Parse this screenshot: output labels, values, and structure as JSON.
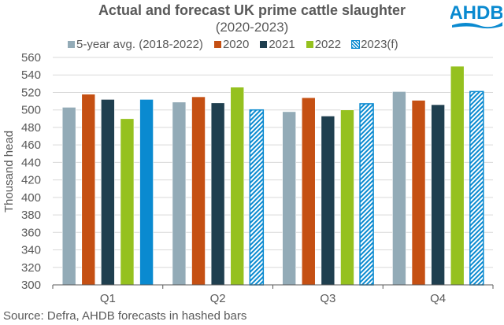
{
  "header": {
    "title": "Actual and forecast UK prime cattle slaughter",
    "subtitle": "(2020-2023)",
    "logo_text": "AHDB",
    "logo_color": "#0a8ad0"
  },
  "footer": {
    "source": "Source: Defra, AHDB forecasts in hashed bars"
  },
  "chart_data": {
    "type": "bar",
    "title": "Actual and forecast UK prime cattle slaughter (2020-2023)",
    "xlabel": "",
    "ylabel": "Thousand head",
    "ylim": [
      300,
      560
    ],
    "yticks": [
      300,
      320,
      340,
      360,
      380,
      400,
      420,
      440,
      460,
      480,
      500,
      520,
      540,
      560
    ],
    "grid": true,
    "legend_position": "top",
    "categories": [
      "Q1",
      "Q2",
      "Q3",
      "Q4"
    ],
    "series": [
      {
        "name": "5-year avg. (2018-2022)",
        "color": "#93abb7",
        "pattern": "solid",
        "values": [
          503,
          509,
          498,
          521
        ]
      },
      {
        "name": "2020",
        "color": "#c55013",
        "pattern": "solid",
        "values": [
          518,
          515,
          514,
          511
        ]
      },
      {
        "name": "2021",
        "color": "#1f3f4f",
        "pattern": "solid",
        "values": [
          512,
          508,
          493,
          506
        ]
      },
      {
        "name": "2022",
        "color": "#95c11f",
        "pattern": "solid",
        "values": [
          490,
          526,
          500,
          550
        ]
      },
      {
        "name": "2023(f)",
        "color": "#0a8ad0",
        "pattern": "hatched",
        "hatched_categories": [
          "Q2",
          "Q3",
          "Q4"
        ],
        "values": [
          512,
          500,
          507,
          521
        ]
      }
    ]
  }
}
